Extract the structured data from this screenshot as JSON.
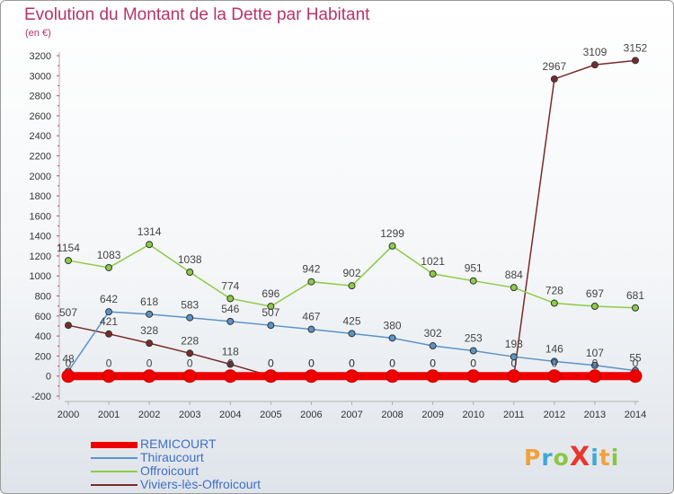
{
  "header": {
    "title": "Evolution du Montant de la Dette par Habitant",
    "subtitle": "(en €)"
  },
  "logo": {
    "text": "ProXiti",
    "letters": [
      "P",
      "r",
      "o",
      "X",
      "i",
      "t",
      "i"
    ],
    "colors": [
      "#f2a13a",
      "#3fa8d8",
      "#8cc63f",
      "#e8372c",
      "#3fa8d8",
      "#f2a13a",
      "#8cc63f"
    ]
  },
  "chart_data": {
    "type": "line",
    "x": [
      "2000",
      "2001",
      "2002",
      "2003",
      "2004",
      "2005",
      "2006",
      "2007",
      "2008",
      "2009",
      "2010",
      "2011",
      "2012",
      "2013",
      "2014"
    ],
    "ylim": [
      -200,
      3200
    ],
    "yticks": [
      -200,
      0,
      200,
      400,
      600,
      800,
      1000,
      1200,
      1400,
      1600,
      1800,
      2000,
      2200,
      2400,
      2600,
      2800,
      3000,
      3200
    ],
    "legend_position": "bottom-left",
    "grid": false,
    "series": [
      {
        "name": "REMICOURT",
        "color": "#ee0000",
        "values": [
          0,
          0,
          0,
          0,
          0,
          0,
          0,
          0,
          0,
          0,
          0,
          0,
          0,
          0,
          0
        ],
        "labels": [
          "0",
          "0",
          "0",
          "0",
          "0",
          "0",
          "0",
          "0",
          "0",
          "0",
          "0",
          "0",
          "0",
          "0",
          "0"
        ]
      },
      {
        "name": "Thiraucourt",
        "color": "#5b93c9",
        "values": [
          48,
          642,
          618,
          583,
          546,
          507,
          467,
          425,
          380,
          302,
          253,
          193,
          146,
          107,
          55
        ],
        "labels": [
          "48",
          "642",
          "618",
          "583",
          "546",
          "507",
          "467",
          "425",
          "380",
          "302",
          "253",
          "193",
          "146",
          "107",
          "55"
        ]
      },
      {
        "name": "Offroicourt",
        "color": "#8ccc46",
        "values": [
          1154,
          1083,
          1314,
          1038,
          774,
          696,
          942,
          902,
          1299,
          1021,
          951,
          884,
          728,
          697,
          681
        ],
        "labels": [
          "1154",
          "1083",
          "1314",
          "1038",
          "774",
          "696",
          "942",
          "902",
          "1299",
          "1021",
          "951",
          "884",
          "728",
          "697",
          "681"
        ]
      },
      {
        "name": "Viviers-lès-Offroicourt",
        "color": "#7a2a2a",
        "values": [
          507,
          421,
          328,
          228,
          118,
          0,
          0,
          0,
          0,
          0,
          0,
          0,
          2967,
          3109,
          3152
        ],
        "labels": [
          "507",
          "421",
          "328",
          "228",
          "118",
          "0",
          "0",
          "0",
          "0",
          "0",
          "0",
          "0",
          "2967",
          "3109",
          "3152"
        ]
      }
    ]
  }
}
